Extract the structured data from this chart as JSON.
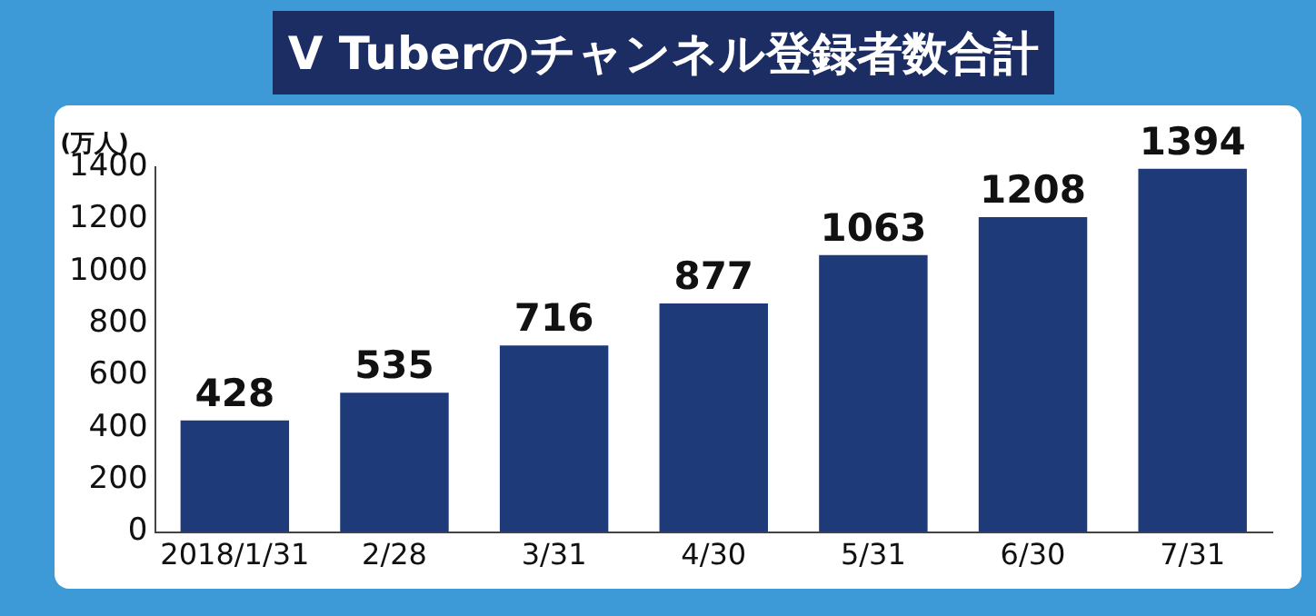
{
  "chart_data": {
    "type": "bar",
    "title": "V Tuberのチャンネル登録者数合計",
    "ylabel": "(万人)",
    "categories": [
      "2018/1/31",
      "2/28",
      "3/31",
      "4/30",
      "5/31",
      "6/30",
      "7/31"
    ],
    "values": [
      428,
      535,
      716,
      877,
      1063,
      1208,
      1394
    ],
    "color": "#1f3a78",
    "ylim": [
      0,
      1400
    ],
    "yticks": [
      0,
      200,
      400,
      600,
      800,
      1000,
      1200,
      1400
    ],
    "grid": false,
    "legend": false,
    "data_labels": true
  }
}
